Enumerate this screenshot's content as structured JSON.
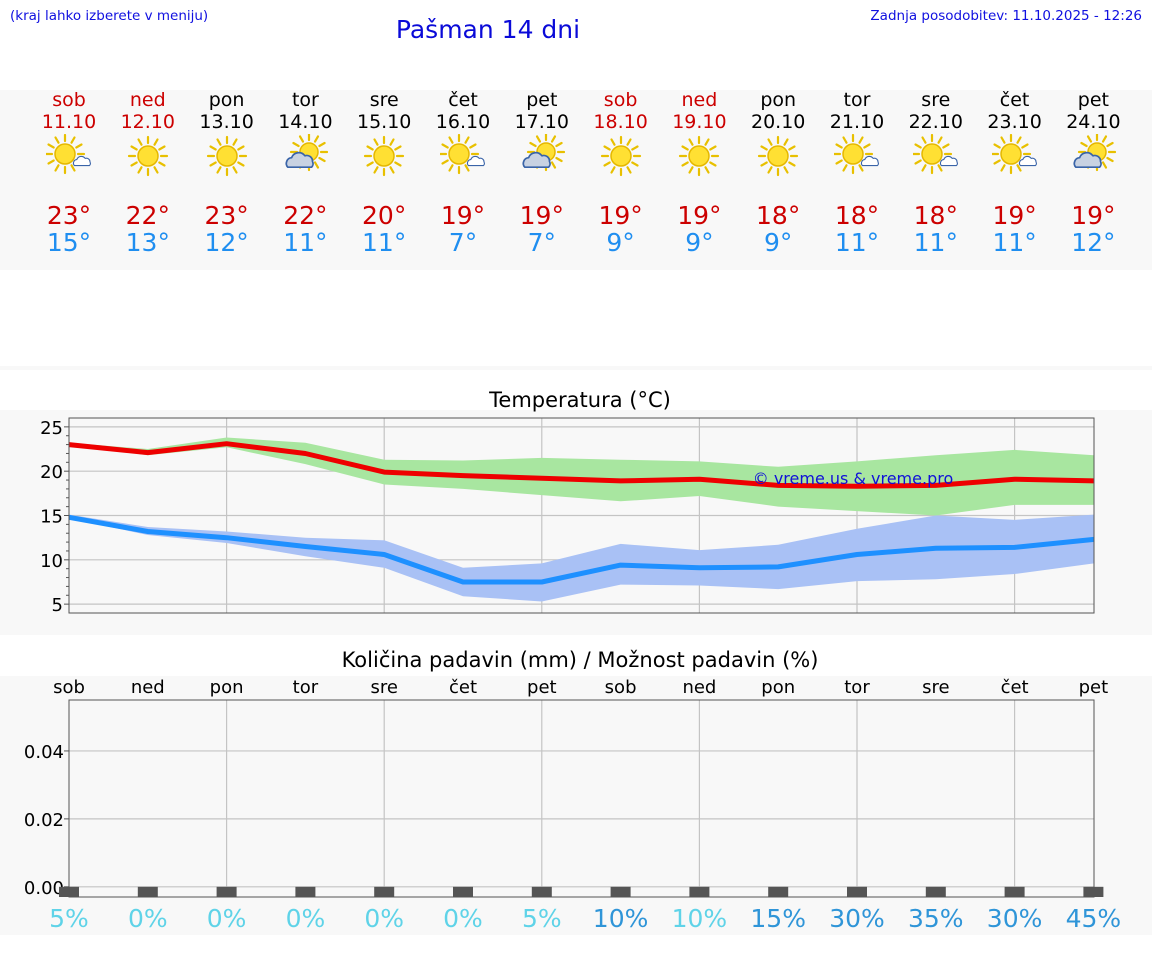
{
  "header": {
    "hint": "(kraj lahko izberete v meniju)",
    "title": "Pašman 14 dni",
    "updated": "Zadnja posodobitev: 11.10.2025 - 12:26"
  },
  "days": [
    {
      "name": "sob",
      "date": "11.10",
      "weekend": true,
      "icon": "sun-cloud-icon",
      "tmax": "23°",
      "tmin": "15°"
    },
    {
      "name": "ned",
      "date": "12.10",
      "weekend": true,
      "icon": "sun-icon",
      "tmax": "22°",
      "tmin": "13°"
    },
    {
      "name": "pon",
      "date": "13.10",
      "weekend": false,
      "icon": "sun-icon",
      "tmax": "23°",
      "tmin": "12°"
    },
    {
      "name": "tor",
      "date": "14.10",
      "weekend": false,
      "icon": "cloud-sun-icon",
      "tmax": "22°",
      "tmin": "11°"
    },
    {
      "name": "sre",
      "date": "15.10",
      "weekend": false,
      "icon": "sun-icon",
      "tmax": "20°",
      "tmin": "11°"
    },
    {
      "name": "čet",
      "date": "16.10",
      "weekend": false,
      "icon": "sun-cloud-icon",
      "tmax": "19°",
      "tmin": "7°"
    },
    {
      "name": "pet",
      "date": "17.10",
      "weekend": false,
      "icon": "cloud-sun-icon",
      "tmax": "19°",
      "tmin": "7°"
    },
    {
      "name": "sob",
      "date": "18.10",
      "weekend": true,
      "icon": "sun-icon",
      "tmax": "19°",
      "tmin": "9°"
    },
    {
      "name": "ned",
      "date": "19.10",
      "weekend": true,
      "icon": "sun-icon",
      "tmax": "19°",
      "tmin": "9°"
    },
    {
      "name": "pon",
      "date": "20.10",
      "weekend": false,
      "icon": "sun-icon",
      "tmax": "18°",
      "tmin": "9°"
    },
    {
      "name": "tor",
      "date": "21.10",
      "weekend": false,
      "icon": "sun-cloud-icon",
      "tmax": "18°",
      "tmin": "11°"
    },
    {
      "name": "sre",
      "date": "22.10",
      "weekend": false,
      "icon": "sun-cloud-icon",
      "tmax": "18°",
      "tmin": "11°"
    },
    {
      "name": "čet",
      "date": "23.10",
      "weekend": false,
      "icon": "sun-cloud-icon",
      "tmax": "19°",
      "tmin": "11°"
    },
    {
      "name": "pet",
      "date": "24.10",
      "weekend": false,
      "icon": "cloud-sun-icon",
      "tmax": "19°",
      "tmin": "12°"
    }
  ],
  "colors": {
    "weekend": "#cc0000",
    "max_line": "#ee0000",
    "max_band": "#a8e6a0",
    "min_line": "#1e90ff",
    "min_band": "#a9c1f5",
    "prob_low": "#5fd3e8",
    "prob_high": "#2f95d8"
  },
  "chart_data": [
    {
      "type": "line",
      "title": "Temperatura (°C)",
      "x": [
        0,
        1,
        2,
        3,
        4,
        5,
        6,
        7,
        8,
        9,
        10,
        11,
        12,
        13
      ],
      "ylim": [
        4,
        26
      ],
      "yticks": [
        5,
        10,
        15,
        20,
        25
      ],
      "watermark": "© vreme.us & vreme.pro",
      "series": [
        {
          "name": "max",
          "values": [
            23,
            22.1,
            23.1,
            22,
            19.9,
            19.5,
            19.2,
            18.9,
            19.1,
            18.4,
            18.3,
            18.4,
            19.1,
            18.9
          ],
          "band_low": [
            23,
            21.8,
            22.7,
            20.8,
            18.5,
            18,
            17.3,
            16.6,
            17.2,
            16,
            15.5,
            15,
            16.2,
            16.2
          ],
          "band_high": [
            23.2,
            22.5,
            23.8,
            23.2,
            21.3,
            21.2,
            21.5,
            21.3,
            21.1,
            20.5,
            21.1,
            21.8,
            22.4,
            21.8
          ]
        },
        {
          "name": "min",
          "values": [
            14.8,
            13.2,
            12.5,
            11.5,
            10.6,
            7.5,
            7.5,
            9.4,
            9.1,
            9.2,
            10.6,
            11.3,
            11.4,
            12.3
          ],
          "band_low": [
            14.7,
            12.8,
            11.9,
            10.4,
            9.1,
            5.9,
            5.3,
            7.2,
            7.1,
            6.7,
            7.6,
            7.8,
            8.4,
            9.6
          ],
          "band_high": [
            15.1,
            13.7,
            13.2,
            12.5,
            12.2,
            9.1,
            9.6,
            11.8,
            11.1,
            11.7,
            13.5,
            15,
            14.5,
            15.1
          ]
        }
      ]
    },
    {
      "type": "bar",
      "title": "Količina padavin (mm) / Možnost padavin (%)",
      "categories": [
        "sob",
        "ned",
        "pon",
        "tor",
        "sre",
        "čet",
        "pet",
        "sob",
        "ned",
        "pon",
        "tor",
        "sre",
        "čet",
        "pet"
      ],
      "values": [
        0,
        0,
        0,
        0,
        0,
        0,
        0,
        0,
        0,
        0,
        0,
        0,
        0,
        0
      ],
      "ylim": [
        -0.003,
        0.055
      ],
      "yticks": [
        "0.00",
        "0.02",
        "0.04"
      ],
      "ytick_values": [
        0,
        0.02,
        0.04
      ],
      "probability": [
        "5%",
        "0%",
        "0%",
        "0%",
        "0%",
        "0%",
        "5%",
        "10%",
        "10%",
        "15%",
        "30%",
        "35%",
        "30%",
        "45%"
      ],
      "probability_values": [
        5,
        0,
        0,
        0,
        0,
        0,
        5,
        10,
        10,
        15,
        30,
        35,
        30,
        45
      ]
    }
  ]
}
